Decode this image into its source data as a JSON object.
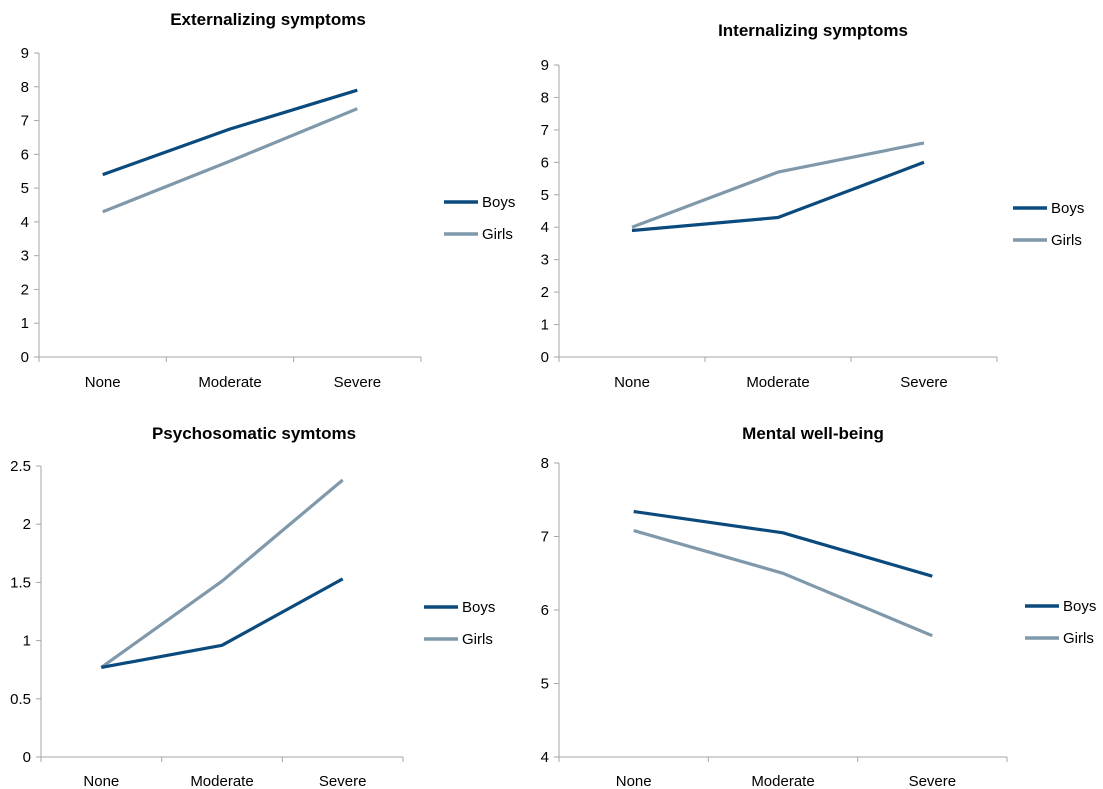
{
  "colors": {
    "boys": "#0b4a7d",
    "girls": "#7f99ab",
    "axis": "#a6a6a6"
  },
  "chart_data": [
    {
      "type": "line",
      "title": "Externalizing symptoms",
      "categories": [
        "None",
        "Moderate",
        "Severe"
      ],
      "ylim": [
        0,
        9
      ],
      "yticks": [
        "0",
        "1",
        "2",
        "3",
        "4",
        "5",
        "6",
        "7",
        "8",
        "9"
      ],
      "legend_position": "right",
      "series": [
        {
          "name": "Boys",
          "values": [
            5.4,
            6.75,
            7.9
          ]
        },
        {
          "name": "Girls",
          "values": [
            4.3,
            5.8,
            7.35
          ]
        }
      ]
    },
    {
      "type": "line",
      "title": "Internalizing symptoms",
      "categories": [
        "None",
        "Moderate",
        "Severe"
      ],
      "ylim": [
        0,
        9
      ],
      "yticks": [
        "0",
        "1",
        "2",
        "3",
        "4",
        "5",
        "6",
        "7",
        "8",
        "9"
      ],
      "legend_position": "right",
      "series": [
        {
          "name": "Boys",
          "values": [
            3.9,
            4.3,
            6.0
          ]
        },
        {
          "name": "Girls",
          "values": [
            4.0,
            5.7,
            6.6
          ]
        }
      ]
    },
    {
      "type": "line",
      "title": "Psychosomatic symtoms",
      "categories": [
        "None",
        "Moderate",
        "Severe"
      ],
      "ylim": [
        0,
        2.5
      ],
      "yticks": [
        "0",
        "0.5",
        "1",
        "1.5",
        "2",
        "2.5"
      ],
      "legend_position": "right",
      "series": [
        {
          "name": "Boys",
          "values": [
            0.77,
            0.96,
            1.53
          ]
        },
        {
          "name": "Girls",
          "values": [
            0.77,
            1.51,
            2.38
          ]
        }
      ]
    },
    {
      "type": "line",
      "title": "Mental well-being",
      "categories": [
        "None",
        "Moderate",
        "Severe"
      ],
      "ylim": [
        4,
        8
      ],
      "yticks": [
        "4",
        "5",
        "6",
        "7",
        "8"
      ],
      "legend_position": "right",
      "series": [
        {
          "name": "Boys",
          "values": [
            7.34,
            7.05,
            6.46
          ]
        },
        {
          "name": "Girls",
          "values": [
            7.08,
            6.5,
            5.65
          ]
        }
      ]
    }
  ]
}
